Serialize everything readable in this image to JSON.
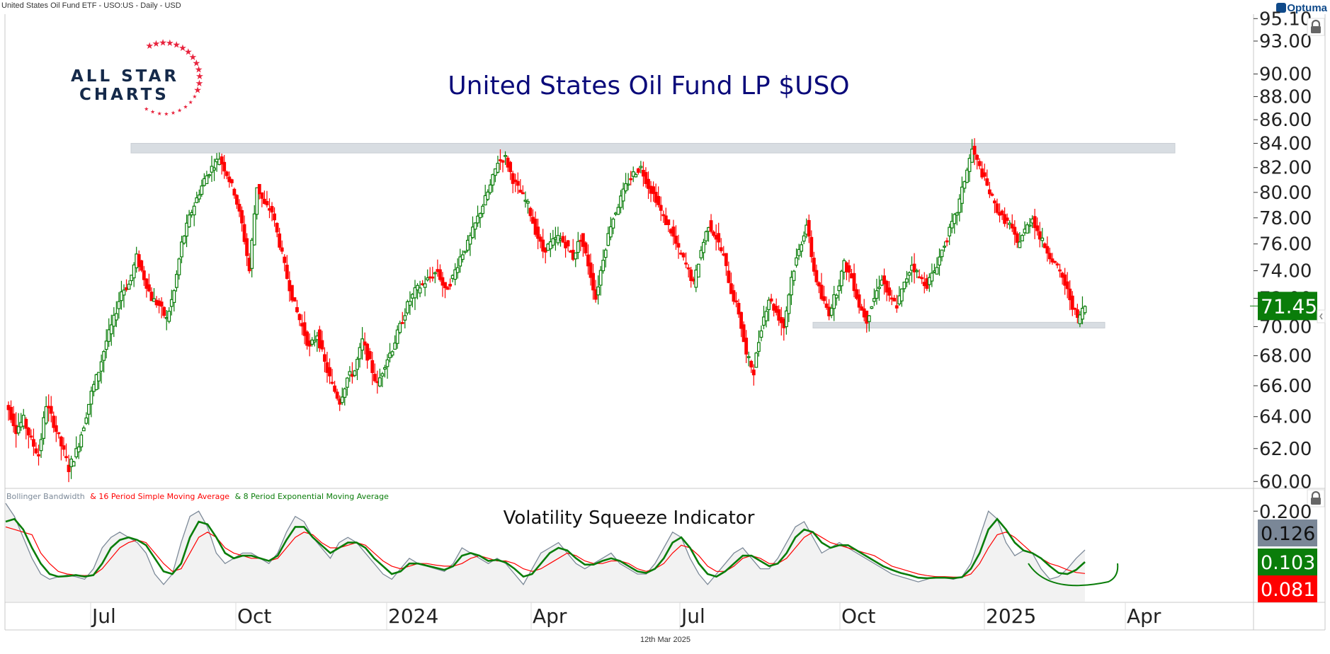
{
  "header": {
    "title": "United States Oil Fund ETF - USO:US - Daily - USD"
  },
  "brand": {
    "optuma": "Optuma",
    "logo_line1": "ALL STAR",
    "logo_line2": "CHARTS"
  },
  "footer": {
    "date": "12th Mar 2025"
  },
  "colors": {
    "up": "#0a7d0a",
    "down": "#ff0000",
    "title": "#0a0a7a",
    "band": "#d8dde2",
    "bbw": "#7d8a99",
    "sma": "#ff0000",
    "ema": "#0a7d0a",
    "last_price_bg": "#0a7d0a"
  },
  "chart_data": [
    {
      "type": "candlestick",
      "title": "United States Oil Fund LP $USO",
      "symbol": "USO",
      "scale": "log",
      "ylim": [
        59.5,
        94
      ],
      "yticks": [
        "60.00",
        "62.00",
        "64.00",
        "66.00",
        "68.00",
        "70.00",
        "72.00",
        "74.00",
        "76.00",
        "78.00",
        "80.00",
        "82.00",
        "84.00",
        "86.00",
        "88.00",
        "90.00",
        "93.00",
        "95.10"
      ],
      "xticks": [
        "Jul",
        "Oct",
        "2024",
        "Apr",
        "Jul",
        "Oct",
        "2025",
        "Apr"
      ],
      "last_price": "71.45",
      "annotations": [
        {
          "type": "resistance-band",
          "from": "Jul 2023",
          "to": "Apr 2025",
          "low": 83.2,
          "high": 84.0
        },
        {
          "type": "support-band",
          "from": "Sep 2024",
          "to": "Mar 2025",
          "low": 69.9,
          "high": 70.3
        }
      ],
      "closes": [
        64.5,
        63.2,
        63.8,
        62.5,
        61.6,
        64.8,
        63.6,
        62.2,
        60.8,
        61.8,
        63.5,
        65.5,
        67.0,
        69.0,
        70.5,
        72.5,
        73.0,
        75.0,
        73.5,
        72.0,
        71.5,
        70.5,
        72.5,
        76.0,
        78.0,
        79.5,
        81.0,
        82.0,
        82.8,
        81.5,
        80.0,
        77.5,
        74.0,
        80.5,
        79.0,
        78.5,
        76.0,
        73.5,
        71.5,
        70.0,
        68.5,
        69.5,
        67.5,
        66.0,
        65.0,
        66.5,
        67.0,
        69.0,
        67.5,
        66.0,
        67.5,
        68.5,
        70.0,
        71.5,
        72.5,
        73.0,
        73.5,
        74.0,
        72.5,
        73.5,
        75.0,
        76.0,
        77.5,
        79.0,
        80.5,
        82.5,
        82.8,
        81.0,
        80.0,
        79.0,
        77.0,
        75.5,
        76.0,
        76.5,
        76.0,
        75.0,
        76.5,
        74.5,
        72.0,
        75.0,
        77.5,
        79.0,
        80.5,
        81.5,
        82.0,
        80.5,
        79.5,
        78.0,
        77.0,
        75.5,
        74.5,
        73.0,
        75.5,
        77.5,
        76.5,
        75.0,
        72.5,
        71.0,
        68.0,
        67.0,
        70.0,
        72.0,
        71.0,
        70.0,
        73.5,
        75.5,
        77.5,
        74.0,
        72.0,
        71.0,
        72.5,
        74.5,
        73.5,
        71.5,
        70.5,
        72.0,
        73.5,
        72.0,
        71.5,
        73.0,
        74.5,
        73.5,
        73.0,
        74.0,
        75.5,
        77.0,
        78.5,
        81.0,
        83.5,
        82.0,
        80.5,
        79.0,
        78.0,
        77.5,
        76.0,
        77.0,
        78.0,
        76.5,
        75.5,
        74.5,
        73.5,
        72.0,
        70.5,
        71.45
      ]
    },
    {
      "type": "line",
      "title": "Volatility Squeeze Indicator",
      "legend": [
        "Bollinger Bandwidth",
        "& 16 Period Simple Moving Average",
        "& 8 Period Exponential Moving Average"
      ],
      "ylim": [
        0.03,
        0.23
      ],
      "yticks": [
        "0.200"
      ],
      "last_values": {
        "bollinger_bandwidth": "0.126",
        "sma16": "0.081",
        "ema8": "0.103"
      },
      "series": [
        {
          "name": "Bollinger Bandwidth",
          "values": [
            0.215,
            0.19,
            0.15,
            0.11,
            0.08,
            0.07,
            0.075,
            0.078,
            0.075,
            0.07,
            0.09,
            0.13,
            0.15,
            0.16,
            0.15,
            0.14,
            0.12,
            0.08,
            0.06,
            0.08,
            0.14,
            0.19,
            0.2,
            0.17,
            0.12,
            0.1,
            0.11,
            0.12,
            0.12,
            0.11,
            0.1,
            0.12,
            0.16,
            0.19,
            0.18,
            0.15,
            0.13,
            0.11,
            0.14,
            0.15,
            0.14,
            0.12,
            0.1,
            0.08,
            0.07,
            0.09,
            0.11,
            0.1,
            0.095,
            0.09,
            0.085,
            0.1,
            0.13,
            0.12,
            0.11,
            0.1,
            0.11,
            0.1,
            0.08,
            0.06,
            0.09,
            0.12,
            0.13,
            0.14,
            0.12,
            0.1,
            0.09,
            0.1,
            0.11,
            0.12,
            0.1,
            0.09,
            0.08,
            0.08,
            0.1,
            0.13,
            0.16,
            0.15,
            0.11,
            0.08,
            0.06,
            0.08,
            0.1,
            0.12,
            0.13,
            0.11,
            0.09,
            0.09,
            0.11,
            0.14,
            0.17,
            0.18,
            0.15,
            0.12,
            0.13,
            0.14,
            0.13,
            0.12,
            0.11,
            0.1,
            0.09,
            0.08,
            0.075,
            0.07,
            0.065,
            0.07,
            0.075,
            0.073,
            0.07,
            0.075,
            0.1,
            0.15,
            0.2,
            0.185,
            0.14,
            0.115,
            0.125,
            0.12,
            0.09,
            0.07,
            0.075,
            0.09,
            0.11,
            0.126
          ]
        },
        {
          "name": "16 Period Simple Moving Average",
          "values": [
            0.17,
            0.165,
            0.16,
            0.155,
            0.12,
            0.1,
            0.085,
            0.08,
            0.078,
            0.077,
            0.078,
            0.09,
            0.11,
            0.13,
            0.14,
            0.145,
            0.14,
            0.12,
            0.1,
            0.085,
            0.09,
            0.12,
            0.15,
            0.16,
            0.15,
            0.13,
            0.12,
            0.115,
            0.11,
            0.11,
            0.105,
            0.11,
            0.13,
            0.15,
            0.16,
            0.155,
            0.14,
            0.13,
            0.13,
            0.135,
            0.14,
            0.135,
            0.12,
            0.105,
            0.095,
            0.09,
            0.095,
            0.1,
            0.1,
            0.097,
            0.095,
            0.095,
            0.1,
            0.11,
            0.115,
            0.11,
            0.105,
            0.105,
            0.1,
            0.09,
            0.085,
            0.09,
            0.1,
            0.11,
            0.12,
            0.115,
            0.105,
            0.1,
            0.1,
            0.105,
            0.105,
            0.1,
            0.09,
            0.085,
            0.09,
            0.1,
            0.12,
            0.135,
            0.13,
            0.115,
            0.095,
            0.085,
            0.085,
            0.095,
            0.11,
            0.115,
            0.11,
            0.1,
            0.1,
            0.11,
            0.13,
            0.15,
            0.16,
            0.15,
            0.14,
            0.135,
            0.13,
            0.125,
            0.12,
            0.115,
            0.105,
            0.095,
            0.09,
            0.085,
            0.08,
            0.077,
            0.075,
            0.075,
            0.074,
            0.074,
            0.08,
            0.1,
            0.13,
            0.155,
            0.16,
            0.15,
            0.135,
            0.12,
            0.11,
            0.1,
            0.095,
            0.088,
            0.083,
            0.081
          ]
        },
        {
          "name": "8 Period Exponential Moving Average",
          "values": [
            0.18,
            0.185,
            0.165,
            0.13,
            0.1,
            0.08,
            0.075,
            0.076,
            0.078,
            0.075,
            0.078,
            0.1,
            0.13,
            0.145,
            0.15,
            0.145,
            0.135,
            0.11,
            0.085,
            0.08,
            0.1,
            0.15,
            0.18,
            0.175,
            0.15,
            0.12,
            0.11,
            0.115,
            0.115,
            0.11,
            0.105,
            0.115,
            0.145,
            0.17,
            0.17,
            0.15,
            0.135,
            0.12,
            0.13,
            0.14,
            0.14,
            0.13,
            0.11,
            0.095,
            0.08,
            0.085,
            0.1,
            0.1,
            0.096,
            0.092,
            0.088,
            0.095,
            0.115,
            0.12,
            0.115,
            0.105,
            0.107,
            0.102,
            0.09,
            0.075,
            0.08,
            0.1,
            0.12,
            0.13,
            0.125,
            0.11,
            0.098,
            0.098,
            0.105,
            0.11,
            0.105,
            0.095,
            0.085,
            0.082,
            0.09,
            0.11,
            0.14,
            0.15,
            0.13,
            0.1,
            0.08,
            0.075,
            0.085,
            0.1,
            0.115,
            0.115,
            0.105,
            0.095,
            0.1,
            0.12,
            0.15,
            0.165,
            0.16,
            0.14,
            0.13,
            0.135,
            0.135,
            0.125,
            0.115,
            0.105,
            0.095,
            0.088,
            0.082,
            0.078,
            0.073,
            0.072,
            0.073,
            0.073,
            0.072,
            0.074,
            0.09,
            0.12,
            0.165,
            0.185,
            0.165,
            0.14,
            0.125,
            0.12,
            0.11,
            0.095,
            0.082,
            0.08,
            0.088,
            0.103
          ]
        }
      ]
    }
  ]
}
